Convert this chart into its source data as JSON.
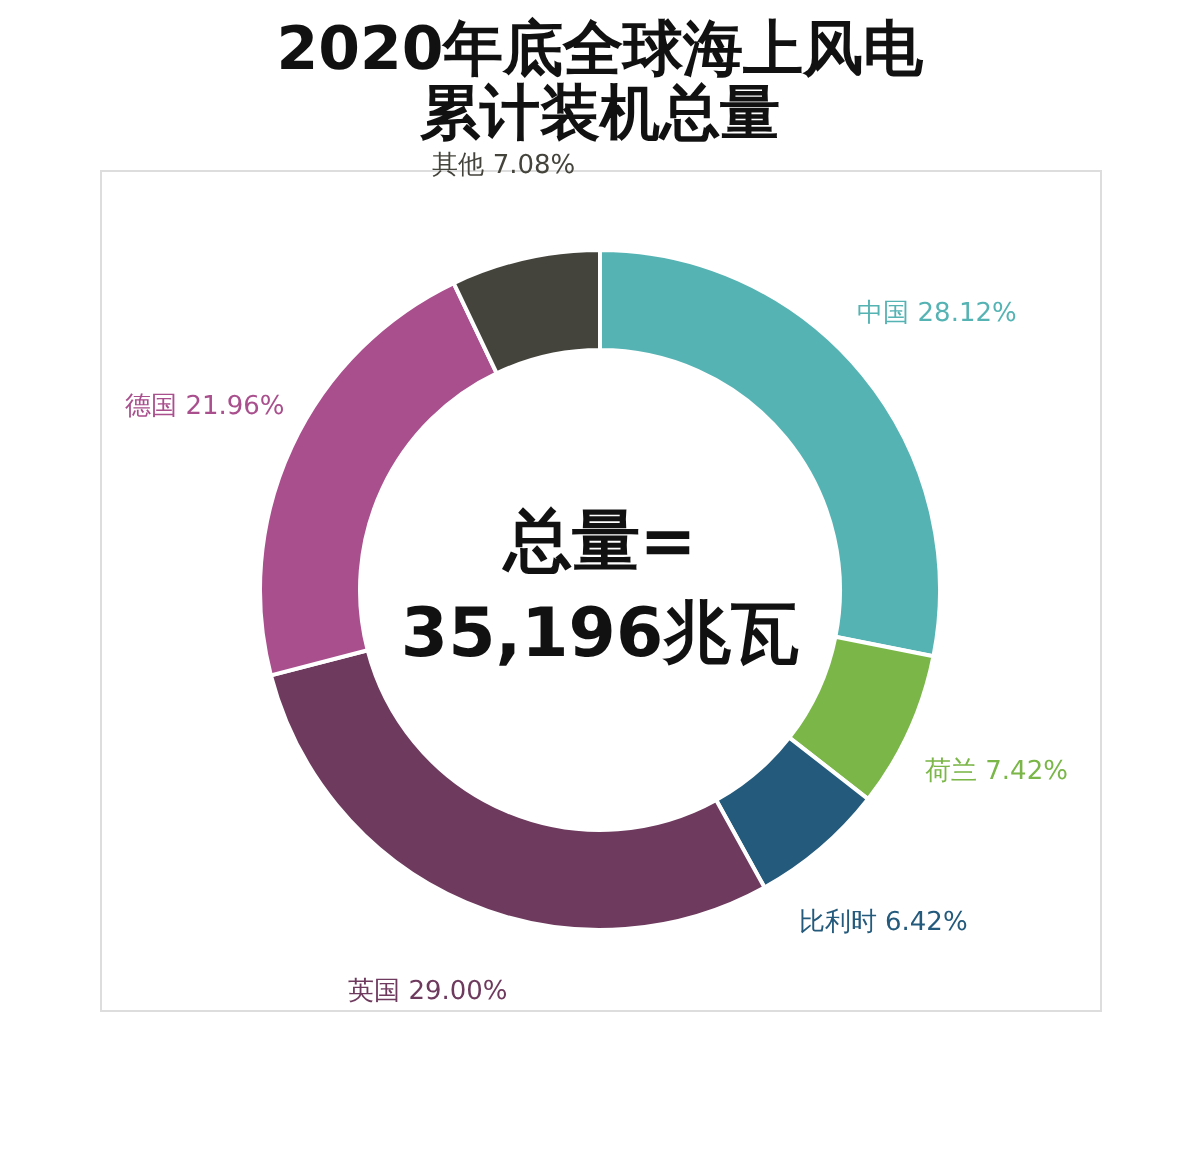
{
  "chart_data": {
    "type": "donut",
    "title": [
      "2020年底全球海上风电",
      "累计装机总量"
    ],
    "categories": [
      "中国",
      "荷兰",
      "比利时",
      "英国",
      "德国",
      "其他"
    ],
    "values": [
      28.12,
      7.42,
      6.42,
      29.0,
      21.96,
      7.08
    ],
    "value_labels": [
      "28.12%",
      "7.42%",
      "6.42%",
      "29.00%",
      "21.96%",
      "7.08%"
    ],
    "colors": [
      "#56b3b4",
      "#7ab648",
      "#245a7c",
      "#6e3a5e",
      "#a94f8d",
      "#45443c"
    ],
    "annotations": [
      "总量=",
      "35,196兆瓦"
    ],
    "legend": false
  }
}
